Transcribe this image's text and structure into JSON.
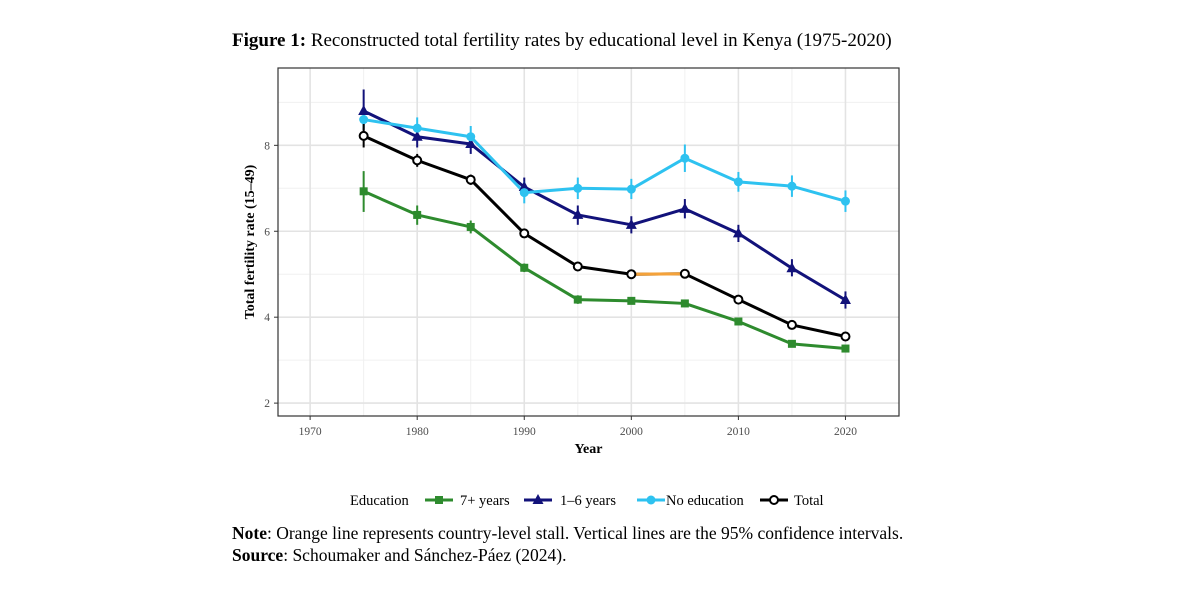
{
  "figure": {
    "title_prefix": "Figure 1:",
    "title_text": " Reconstructed total fertility rates by educational level in Kenya (1975-2020)"
  },
  "notes": {
    "note_label": "Note",
    "note_text": ": Orange line represents country-level stall. Vertical lines are the 95% confidence intervals.",
    "source_label": "Source",
    "source_text": ": Schoumaker and Sánchez-Páez (2024)."
  },
  "chart_data": {
    "type": "line",
    "xlabel": "Year",
    "ylabel": "Total fertility rate (15–49)",
    "xlim": [
      1967,
      2025
    ],
    "ylim": [
      1.7,
      9.8
    ],
    "xticks": [
      1970,
      1980,
      1990,
      2000,
      2010,
      2020
    ],
    "yticks": [
      2,
      4,
      6,
      8
    ],
    "grid": true,
    "legend_title": "Education",
    "legend_position": "bottom",
    "x": [
      1975,
      1980,
      1985,
      1990,
      1995,
      2000,
      2005,
      2010,
      2015,
      2020
    ],
    "series": [
      {
        "name": "7+ years",
        "color": "#2e8b2e",
        "marker": "square",
        "values": [
          6.93,
          6.38,
          6.1,
          5.15,
          4.41,
          4.38,
          4.32,
          3.9,
          3.38,
          3.27
        ],
        "ci": [
          [
            6.45,
            7.4
          ],
          [
            6.15,
            6.6
          ],
          [
            5.95,
            6.25
          ],
          [
            5.05,
            5.25
          ],
          [
            4.31,
            4.51
          ],
          [
            4.3,
            4.45
          ],
          [
            4.24,
            4.4
          ],
          [
            3.84,
            3.96
          ],
          [
            3.33,
            3.43
          ],
          [
            3.23,
            3.31
          ]
        ]
      },
      {
        "name": "1–6 years",
        "color": "#12127a",
        "marker": "triangle",
        "values": [
          8.8,
          8.2,
          8.03,
          7.03,
          6.38,
          6.15,
          6.52,
          5.95,
          5.14,
          4.4
        ],
        "ci": [
          [
            8.35,
            9.3
          ],
          [
            7.95,
            8.45
          ],
          [
            7.8,
            8.25
          ],
          [
            6.8,
            7.25
          ],
          [
            6.15,
            6.6
          ],
          [
            5.95,
            6.35
          ],
          [
            6.3,
            6.75
          ],
          [
            5.75,
            6.15
          ],
          [
            4.95,
            5.35
          ],
          [
            4.2,
            4.6
          ]
        ]
      },
      {
        "name": "No education",
        "color": "#2ec2f0",
        "marker": "circle",
        "values": [
          8.6,
          8.4,
          8.2,
          6.9,
          7.0,
          6.98,
          7.7,
          7.15,
          7.05,
          6.7
        ],
        "ci": [
          [
            8.4,
            8.8
          ],
          [
            8.15,
            8.65
          ],
          [
            7.95,
            8.45
          ],
          [
            6.65,
            7.15
          ],
          [
            6.75,
            7.25
          ],
          [
            6.75,
            7.22
          ],
          [
            7.38,
            8.02
          ],
          [
            6.92,
            7.38
          ],
          [
            6.8,
            7.3
          ],
          [
            6.45,
            6.95
          ]
        ]
      },
      {
        "name": "Total",
        "color": "#000000",
        "marker": "open-circle",
        "values": [
          8.22,
          7.65,
          7.2,
          5.95,
          5.18,
          5.0,
          5.01,
          4.41,
          3.82,
          3.55
        ],
        "ci": [
          [
            7.95,
            8.5
          ],
          [
            7.5,
            7.8
          ],
          [
            7.08,
            7.32
          ],
          [
            5.87,
            6.03
          ],
          [
            5.12,
            5.24
          ],
          [
            4.96,
            5.04
          ],
          [
            4.97,
            5.05
          ],
          [
            4.37,
            4.45
          ],
          [
            3.78,
            3.86
          ],
          [
            3.51,
            3.59
          ]
        ]
      }
    ],
    "stall": {
      "series": "Total",
      "from_index": 5,
      "to_index": 6,
      "color": "#f4a23a"
    }
  }
}
